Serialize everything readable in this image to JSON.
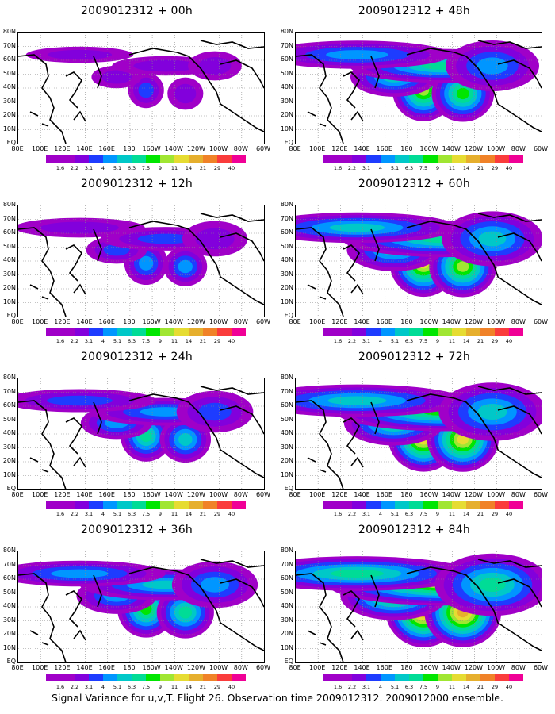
{
  "caption": "Signal Variance for u,v,T. Flight 26. Observation time 2009012312. 2009012000 ensemble.",
  "lat_labels": [
    "80N",
    "70N",
    "60N",
    "50N",
    "40N",
    "30N",
    "20N",
    "10N",
    "EQ"
  ],
  "lon_labels": [
    "80E",
    "100E",
    "120E",
    "140E",
    "160E",
    "180",
    "160W",
    "140W",
    "120W",
    "100W",
    "80W",
    "60W"
  ],
  "colorbar": {
    "labels": [
      "1.6",
      "2.2",
      "3.1",
      "4",
      "5.1",
      "6.3",
      "7.5",
      "9",
      "11",
      "14",
      "21",
      "29",
      "40"
    ],
    "colors": [
      "#a000c8",
      "#8200dc",
      "#1e3cff",
      "#0096ff",
      "#00c8c8",
      "#00dc96",
      "#00e600",
      "#a0e632",
      "#e6dc32",
      "#e6af2d",
      "#f08228",
      "#fa3c3c",
      "#f00096"
    ]
  },
  "panels": [
    {
      "title": "2009012312 + 00h",
      "level": 0.2
    },
    {
      "title": "2009012312 + 12h",
      "level": 0.35
    },
    {
      "title": "2009012312 + 24h",
      "level": 0.5
    },
    {
      "title": "2009012312 + 36h",
      "level": 0.62
    },
    {
      "title": "2009012312 + 48h",
      "level": 0.72
    },
    {
      "title": "2009012312 + 60h",
      "level": 0.82
    },
    {
      "title": "2009012312 + 72h",
      "level": 0.9
    },
    {
      "title": "2009012312 + 84h",
      "level": 1.0
    }
  ]
}
